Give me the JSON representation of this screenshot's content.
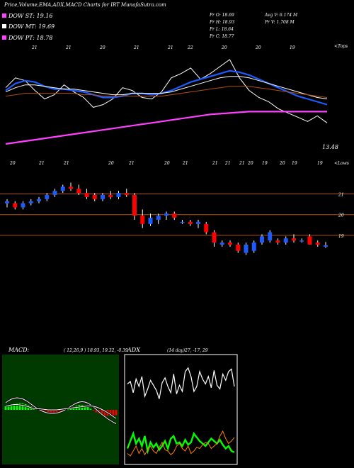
{
  "header": {
    "title": "Price,Volume,EMA,ADX,MACD Charts for IRT MunafaSutra.com",
    "dow_st": "DOW ST: 19.16",
    "dow_mt": "DOW MT: 19.69",
    "dow_pt": "DOW PT: 18.78",
    "pr_o": "Pr   O: 18.69",
    "pr_h": "Pr   H: 18.93",
    "pr_l": "Pr   L: 18.64",
    "pr_c": "Pr   C: 18.77",
    "avg_v": "Avg V: 6.174  M",
    "pr_v": "Pr   V: 1.708 M"
  },
  "colors": {
    "ema_short": "#ffffff",
    "ema_mid": "#1e5bff",
    "ema_long": "#b05010",
    "ema_200": "#ff40ff",
    "candle_up": "#1e5bff",
    "candle_down": "#ff0000",
    "level_line": "#b05010",
    "macd_panel": "#003a00",
    "adx_green": "#00ff00",
    "adx_orange": "#ff8000"
  },
  "chart_data": [
    {
      "type": "line",
      "name": "ema-panel",
      "top_axis_label": "<Tops",
      "top_tick_labels": [
        "21",
        "21",
        "20",
        "21",
        "21",
        "22",
        "20",
        "20",
        "19"
      ],
      "bottom_axis_label": "<Lows",
      "bottom_tick_labels": [
        "20",
        "21",
        "21",
        "20",
        "21",
        "20",
        "21",
        "21",
        "21",
        "21",
        "20",
        "19",
        "20",
        "19",
        "19"
      ],
      "last_value_label": "13.48",
      "series": [
        {
          "color_key": "ema_short",
          "values": [
            21.6,
            22.3,
            22.1,
            21.4,
            20.8,
            21.1,
            21.8,
            21.3,
            20.9,
            20.2,
            20.4,
            20.8,
            21.6,
            21.4,
            20.9,
            20.8,
            21.3,
            22.3,
            22.6,
            23.0,
            22.2,
            22.6,
            23.1,
            23.6,
            22.3,
            21.4,
            20.9,
            20.6,
            20.1,
            19.8,
            19.5,
            19.2,
            19.6,
            19.1
          ]
        },
        {
          "color_key": "ema_mid",
          "values": [
            21.4,
            21.9,
            22.1,
            22.0,
            21.7,
            21.5,
            21.5,
            21.4,
            21.3,
            21.1,
            20.9,
            20.9,
            21.0,
            21.2,
            21.2,
            21.1,
            21.2,
            21.4,
            21.7,
            22.0,
            22.2,
            22.4,
            22.6,
            22.8,
            22.7,
            22.5,
            22.2,
            21.9,
            21.6,
            21.3,
            21.0,
            20.8,
            20.6,
            20.4
          ]
        },
        {
          "color_key": "ema_short",
          "values": [
            21.3,
            21.6,
            21.8,
            21.8,
            21.7,
            21.6,
            21.5,
            21.5,
            21.4,
            21.3,
            21.2,
            21.1,
            21.1,
            21.2,
            21.2,
            21.2,
            21.2,
            21.3,
            21.5,
            21.7,
            21.9,
            22.1,
            22.3,
            22.4,
            22.4,
            22.3,
            22.1,
            21.9,
            21.7,
            21.5,
            21.3,
            21.1,
            20.9,
            20.8
          ]
        },
        {
          "color_key": "ema_long",
          "values": [
            21.0,
            21.1,
            21.2,
            21.2,
            21.2,
            21.2,
            21.2,
            21.2,
            21.1,
            21.1,
            21.0,
            21.0,
            21.0,
            21.0,
            21.0,
            21.0,
            21.0,
            21.1,
            21.2,
            21.3,
            21.4,
            21.5,
            21.6,
            21.7,
            21.7,
            21.7,
            21.6,
            21.5,
            21.4,
            21.3,
            21.2,
            21.1,
            21.0,
            20.9
          ]
        },
        {
          "color_key": "ema_200",
          "values": [
            17.6,
            17.7,
            17.8,
            17.9,
            18.0,
            18.1,
            18.2,
            18.3,
            18.4,
            18.5,
            18.6,
            18.7,
            18.8,
            18.9,
            19.0,
            19.1,
            19.2,
            19.3,
            19.4,
            19.5,
            19.6,
            19.7,
            19.75,
            19.8,
            19.85,
            19.9,
            19.9,
            19.9,
            19.9,
            19.9,
            19.9,
            19.9,
            19.9,
            19.9
          ]
        }
      ]
    },
    {
      "type": "candlestick",
      "name": "price-panel",
      "price_levels": [
        "21",
        "20",
        "19"
      ],
      "candles": [
        {
          "o": 20.8,
          "h": 21.0,
          "l": 20.6,
          "c": 20.9
        },
        {
          "o": 20.8,
          "h": 20.9,
          "l": 20.5,
          "c": 20.6
        },
        {
          "o": 20.6,
          "h": 20.9,
          "l": 20.5,
          "c": 20.8
        },
        {
          "o": 20.8,
          "h": 21.0,
          "l": 20.7,
          "c": 20.9
        },
        {
          "o": 20.9,
          "h": 21.1,
          "l": 20.8,
          "c": 21.0
        },
        {
          "o": 21.0,
          "h": 21.3,
          "l": 20.9,
          "c": 21.2
        },
        {
          "o": 21.2,
          "h": 21.5,
          "l": 21.1,
          "c": 21.4
        },
        {
          "o": 21.4,
          "h": 21.7,
          "l": 21.3,
          "c": 21.6
        },
        {
          "o": 21.6,
          "h": 21.8,
          "l": 21.4,
          "c": 21.5
        },
        {
          "o": 21.5,
          "h": 21.7,
          "l": 21.2,
          "c": 21.3
        },
        {
          "o": 21.3,
          "h": 21.5,
          "l": 21.0,
          "c": 21.1
        },
        {
          "o": 21.2,
          "h": 21.3,
          "l": 20.9,
          "c": 21.0
        },
        {
          "o": 21.0,
          "h": 21.3,
          "l": 20.9,
          "c": 21.2
        },
        {
          "o": 21.2,
          "h": 21.4,
          "l": 21.0,
          "c": 21.1
        },
        {
          "o": 21.1,
          "h": 21.4,
          "l": 21.0,
          "c": 21.3
        },
        {
          "o": 21.3,
          "h": 21.5,
          "l": 21.1,
          "c": 21.2
        },
        {
          "o": 21.2,
          "h": 21.3,
          "l": 20.0,
          "c": 20.2
        },
        {
          "o": 20.2,
          "h": 20.5,
          "l": 19.6,
          "c": 19.8
        },
        {
          "o": 19.8,
          "h": 20.3,
          "l": 19.7,
          "c": 20.1
        },
        {
          "o": 20.0,
          "h": 20.3,
          "l": 19.8,
          "c": 20.2
        },
        {
          "o": 20.2,
          "h": 20.4,
          "l": 20.0,
          "c": 20.3
        },
        {
          "o": 20.3,
          "h": 20.4,
          "l": 20.0,
          "c": 20.1
        },
        {
          "o": 19.9,
          "h": 20.0,
          "l": 19.8,
          "c": 19.9
        },
        {
          "o": 19.9,
          "h": 20.0,
          "l": 19.7,
          "c": 19.8
        },
        {
          "o": 19.8,
          "h": 20.0,
          "l": 19.6,
          "c": 19.9
        },
        {
          "o": 19.8,
          "h": 19.9,
          "l": 19.3,
          "c": 19.4
        },
        {
          "o": 19.4,
          "h": 19.5,
          "l": 18.7,
          "c": 18.9
        },
        {
          "o": 18.8,
          "h": 19.0,
          "l": 18.7,
          "c": 18.9
        },
        {
          "o": 18.9,
          "h": 19.0,
          "l": 18.7,
          "c": 18.8
        },
        {
          "o": 18.8,
          "h": 18.9,
          "l": 18.4,
          "c": 18.5
        },
        {
          "o": 18.4,
          "h": 18.9,
          "l": 18.3,
          "c": 18.8
        },
        {
          "o": 18.5,
          "h": 19.0,
          "l": 18.4,
          "c": 18.9
        },
        {
          "o": 18.9,
          "h": 19.3,
          "l": 18.8,
          "c": 19.2
        },
        {
          "o": 19.0,
          "h": 19.5,
          "l": 18.9,
          "c": 19.4
        },
        {
          "o": 19.0,
          "h": 19.1,
          "l": 18.8,
          "c": 18.9
        },
        {
          "o": 18.9,
          "h": 19.2,
          "l": 18.8,
          "c": 19.1
        },
        {
          "o": 19.1,
          "h": 19.3,
          "l": 18.9,
          "c": 19.0
        },
        {
          "o": 19.0,
          "h": 19.1,
          "l": 18.9,
          "c": 19.0
        },
        {
          "o": 19.2,
          "h": 19.3,
          "l": 18.8,
          "c": 18.8
        },
        {
          "o": 18.9,
          "h": 19.0,
          "l": 18.7,
          "c": 18.8
        },
        {
          "o": 18.7,
          "h": 18.93,
          "l": 18.64,
          "c": 18.77
        }
      ]
    },
    {
      "type": "bar",
      "name": "macd-panel",
      "label": "MACD:",
      "params": "( 12,26,9 ) 18.93,  19.32,  -0.39",
      "histogram": [
        0.1,
        0.14,
        0.16,
        0.18,
        0.19,
        0.19,
        0.18,
        0.16,
        0.13,
        0.1,
        0.06,
        0.02,
        -0.03,
        -0.06,
        -0.08,
        -0.09,
        -0.1,
        -0.1,
        -0.09,
        -0.08,
        -0.06,
        -0.03,
        0.01,
        0.05,
        0.09,
        0.12,
        0.14,
        0.14,
        0.12,
        0.08,
        0.03,
        -0.02,
        -0.07,
        -0.11,
        -0.14,
        -0.16,
        -0.17,
        -0.17,
        -0.16,
        -0.15
      ],
      "macd": [
        0.2,
        0.26,
        0.3,
        0.33,
        0.34,
        0.33,
        0.31,
        0.27,
        0.22,
        0.16,
        0.1,
        0.05,
        0.0,
        -0.04,
        -0.07,
        -0.09,
        -0.1,
        -0.1,
        -0.09,
        -0.07,
        -0.04,
        0.0,
        0.05,
        0.1,
        0.15,
        0.19,
        0.22,
        0.23,
        0.22,
        0.19,
        0.14,
        0.08,
        0.01,
        -0.06,
        -0.13,
        -0.19,
        -0.25,
        -0.3,
        -0.35,
        -0.39
      ],
      "signal": [
        0.1,
        0.12,
        0.14,
        0.15,
        0.15,
        0.14,
        0.13,
        0.11,
        0.09,
        0.06,
        0.04,
        0.03,
        0.03,
        0.02,
        0.01,
        0.0,
        0.0,
        0.0,
        0.0,
        0.01,
        0.02,
        0.03,
        0.04,
        0.05,
        0.06,
        0.07,
        0.08,
        0.09,
        0.1,
        0.11,
        0.11,
        0.1,
        0.08,
        0.05,
        0.01,
        -0.03,
        -0.08,
        -0.13,
        -0.19,
        -0.24
      ]
    },
    {
      "type": "line",
      "name": "adx-panel",
      "label": "ADX",
      "params": "(14 day)27, -17,  29",
      "series": [
        {
          "color_key": "ema_short",
          "values": [
            62,
            64,
            55,
            66,
            60,
            68,
            52,
            58,
            65,
            61,
            57,
            50,
            63,
            67,
            60,
            55,
            70,
            54,
            61,
            56,
            72,
            75,
            68,
            56,
            60,
            72,
            66,
            62,
            68,
            59,
            73,
            61,
            58,
            70,
            65,
            72,
            74,
            60
          ]
        },
        {
          "color_key": "adx_green",
          "values": [
            10,
            16,
            22,
            14,
            18,
            12,
            20,
            8,
            15,
            11,
            14,
            9,
            12,
            16,
            10,
            18,
            20,
            14,
            15,
            12,
            17,
            13,
            15,
            22,
            19,
            16,
            14,
            12,
            15,
            18,
            16,
            14,
            17,
            13,
            10,
            12,
            8,
            7
          ]
        },
        {
          "color_key": "adx_orange",
          "values": [
            6,
            4,
            8,
            12,
            6,
            10,
            5,
            9,
            12,
            8,
            6,
            11,
            15,
            9,
            8,
            5,
            7,
            12,
            14,
            10,
            8,
            12,
            6,
            8,
            11,
            10,
            13,
            15,
            14,
            10,
            12,
            14,
            20,
            24,
            18,
            14,
            16,
            19
          ]
        }
      ]
    }
  ]
}
